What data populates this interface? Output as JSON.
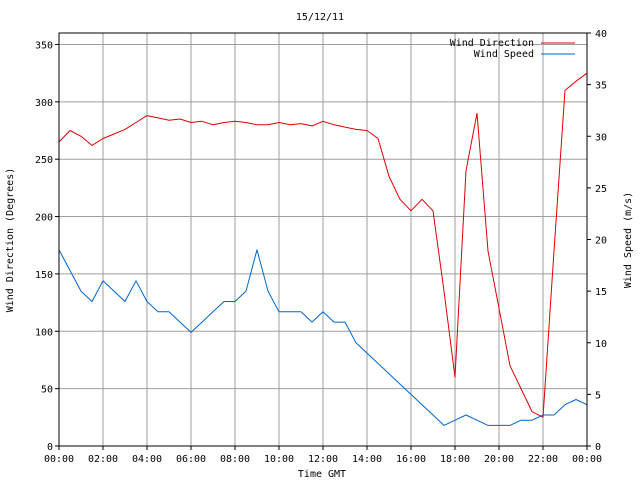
{
  "chart_data": {
    "type": "line",
    "title": "15/12/11",
    "xlabel": "Time GMT",
    "ylabel_left": "Wind Direction (Degrees)",
    "ylabel_right": "Wind Speed (m/s)",
    "x_ticks": [
      "00:00",
      "02:00",
      "04:00",
      "06:00",
      "08:00",
      "10:00",
      "12:00",
      "14:00",
      "16:00",
      "18:00",
      "20:00",
      "22:00",
      "00:00"
    ],
    "xlim_hours": [
      0,
      24
    ],
    "y_left": {
      "ylim": [
        0,
        360
      ],
      "ticks": [
        "0",
        "50",
        "100",
        "150",
        "200",
        "250",
        "300",
        "350"
      ]
    },
    "y_right": {
      "ylim": [
        0,
        40
      ],
      "ticks": [
        "0",
        "5",
        "10",
        "15",
        "20",
        "25",
        "30",
        "35",
        "40"
      ]
    },
    "grid": true,
    "legend_position": "top-right",
    "series": [
      {
        "name": "Wind Direction",
        "axis": "left",
        "color": "#dd0000",
        "x_hours": [
          0,
          0.5,
          1,
          1.5,
          2,
          2.5,
          3,
          3.5,
          4,
          4.5,
          5,
          5.5,
          6,
          6.5,
          7,
          7.5,
          8,
          8.5,
          9,
          9.5,
          10,
          10.5,
          11,
          11.5,
          12,
          12.5,
          13,
          13.5,
          14,
          14.5,
          15,
          15.5,
          16,
          16.5,
          17,
          17.5,
          18,
          18.5,
          19,
          19.5,
          20,
          20.5,
          21,
          21.5,
          22,
          22.5,
          23,
          23.5,
          24
        ],
        "values": [
          265,
          275,
          270,
          262,
          268,
          272,
          276,
          282,
          288,
          286,
          284,
          285,
          282,
          283,
          280,
          282,
          283,
          282,
          280,
          280,
          282,
          280,
          281,
          279,
          283,
          280,
          278,
          276,
          275,
          268,
          235,
          215,
          205,
          215,
          205,
          135,
          60,
          240,
          290,
          170,
          120,
          70,
          50,
          30,
          25,
          170,
          310,
          318,
          325
        ]
      },
      {
        "name": "Wind Speed",
        "axis": "right",
        "color": "#0066cc",
        "x_hours": [
          0,
          0.5,
          1,
          1.5,
          2,
          2.5,
          3,
          3.5,
          4,
          4.5,
          5,
          5.5,
          6,
          6.5,
          7,
          7.5,
          8,
          8.5,
          9,
          9.5,
          10,
          10.5,
          11,
          11.5,
          12,
          12.5,
          13,
          13.5,
          14,
          14.5,
          15,
          15.5,
          16,
          16.5,
          17,
          17.5,
          18,
          18.5,
          19,
          19.5,
          20,
          20.5,
          21,
          21.5,
          22,
          22.5,
          23,
          23.5,
          24
        ],
        "values": [
          19,
          17,
          15,
          14,
          16,
          15,
          14,
          16,
          14,
          13,
          13,
          12,
          11,
          12,
          13,
          14,
          14,
          15,
          19,
          15,
          13,
          13,
          13,
          12,
          13,
          12,
          12,
          10,
          9,
          8,
          7,
          6,
          5,
          4,
          3,
          2,
          2.5,
          3,
          2.5,
          2,
          2,
          2,
          2.5,
          2.5,
          3,
          3,
          4,
          4.5,
          4
        ]
      }
    ]
  }
}
